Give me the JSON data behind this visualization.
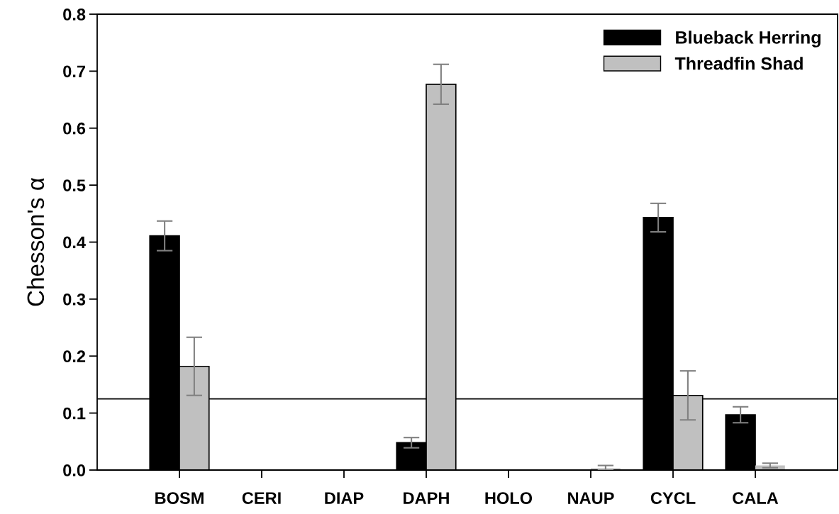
{
  "chart_data": {
    "type": "bar",
    "ylabel": "Chesson's α",
    "categories": [
      "BOSM",
      "CERI",
      "DIAP",
      "DAPH",
      "HOLO",
      "NAUP",
      "CYCL",
      "CALA"
    ],
    "series": [
      {
        "name": "Blueback Herring",
        "color": "#000000",
        "values": [
          0.411,
          0,
          0,
          0.048,
          0,
          0,
          0.443,
          0.097
        ],
        "errors": [
          0.026,
          null,
          null,
          0.009,
          null,
          null,
          0.025,
          0.014
        ]
      },
      {
        "name": "Threadfin Shad",
        "color": "#c0c0c0",
        "values": [
          0.182,
          0,
          0,
          0.677,
          0,
          0.003,
          0.131,
          0.008
        ],
        "errors": [
          0.051,
          null,
          null,
          0.035,
          null,
          [
            0.003,
            0.005
          ],
          0.043,
          0.004
        ]
      }
    ],
    "ylim": [
      0,
      0.8
    ],
    "yticks": [
      {
        "value": 0,
        "label": "0.0"
      },
      0.1,
      0.2,
      0.3,
      0.4,
      0.5,
      0.6,
      0.7,
      0.8
    ],
    "ref_lines": [
      {
        "axis": "y",
        "value": 0.125,
        "color": "#000000"
      }
    ],
    "legend": "top right",
    "grid": false
  }
}
